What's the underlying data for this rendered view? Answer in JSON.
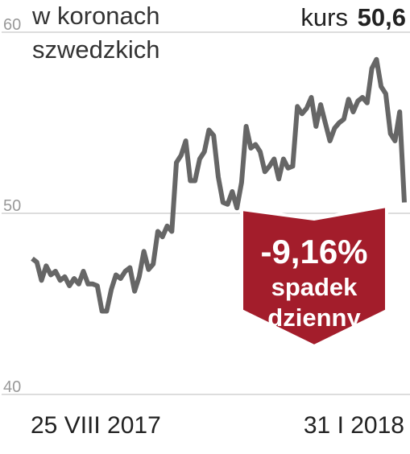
{
  "chart_data": {
    "type": "line",
    "subtitle": [
      "w koronach",
      "szwedzkich"
    ],
    "price_label": "kurs",
    "price": "50,6",
    "change": "-9,16%",
    "change_label": [
      "spadek",
      "dzienny"
    ],
    "categories": [
      "25 VIII 2017",
      null,
      null,
      null,
      null,
      null,
      null,
      null,
      null,
      null,
      null,
      null,
      null,
      null,
      null,
      null,
      null,
      null,
      null,
      null,
      null,
      null,
      null,
      null,
      null,
      null,
      null,
      null,
      null,
      null,
      null,
      null,
      null,
      null,
      null,
      null,
      null,
      null,
      null,
      null,
      null,
      null,
      null,
      null,
      null,
      null,
      null,
      null,
      null,
      null,
      null,
      null,
      null,
      null,
      null,
      null,
      null,
      null,
      null,
      null,
      null,
      null,
      null,
      null,
      null,
      null,
      null,
      null,
      null,
      null,
      null,
      null,
      null,
      null,
      null,
      null,
      null,
      null,
      null,
      null,
      "31 I 2018"
    ],
    "series": [
      {
        "color": "#666666",
        "values": [
          47.5,
          47.3,
          46.3,
          47.1,
          46.6,
          46.8,
          46.3,
          46.5,
          46.0,
          46.4,
          46.1,
          46.8,
          46.1,
          46.1,
          46.0,
          44.6,
          44.6,
          45.8,
          46.6,
          46.4,
          46.8,
          47.0,
          45.7,
          46.5,
          47.9,
          46.9,
          47.2,
          49.0,
          48.7,
          49.3,
          49.0,
          52.8,
          53.2,
          54.0,
          51.8,
          51.8,
          53.0,
          53.4,
          54.6,
          54.3,
          52.0,
          50.6,
          50.5,
          51.2,
          50.3,
          51.7,
          54.8,
          53.6,
          53.8,
          53.4,
          52.3,
          52.6,
          53.0,
          51.9,
          53.0,
          52.5,
          52.6,
          55.9,
          55.5,
          55.8,
          56.4,
          54.8,
          56.0,
          55.0,
          54.0,
          54.7,
          55.0,
          55.2,
          56.3,
          55.6,
          56.2,
          56.4,
          56.1,
          58.0,
          58.5,
          57.0,
          56.6,
          54.4,
          54.0,
          55.6,
          50.6
        ]
      }
    ],
    "ylim": [
      40,
      60
    ],
    "yticks": [
      40,
      50,
      60
    ],
    "grid": true
  }
}
